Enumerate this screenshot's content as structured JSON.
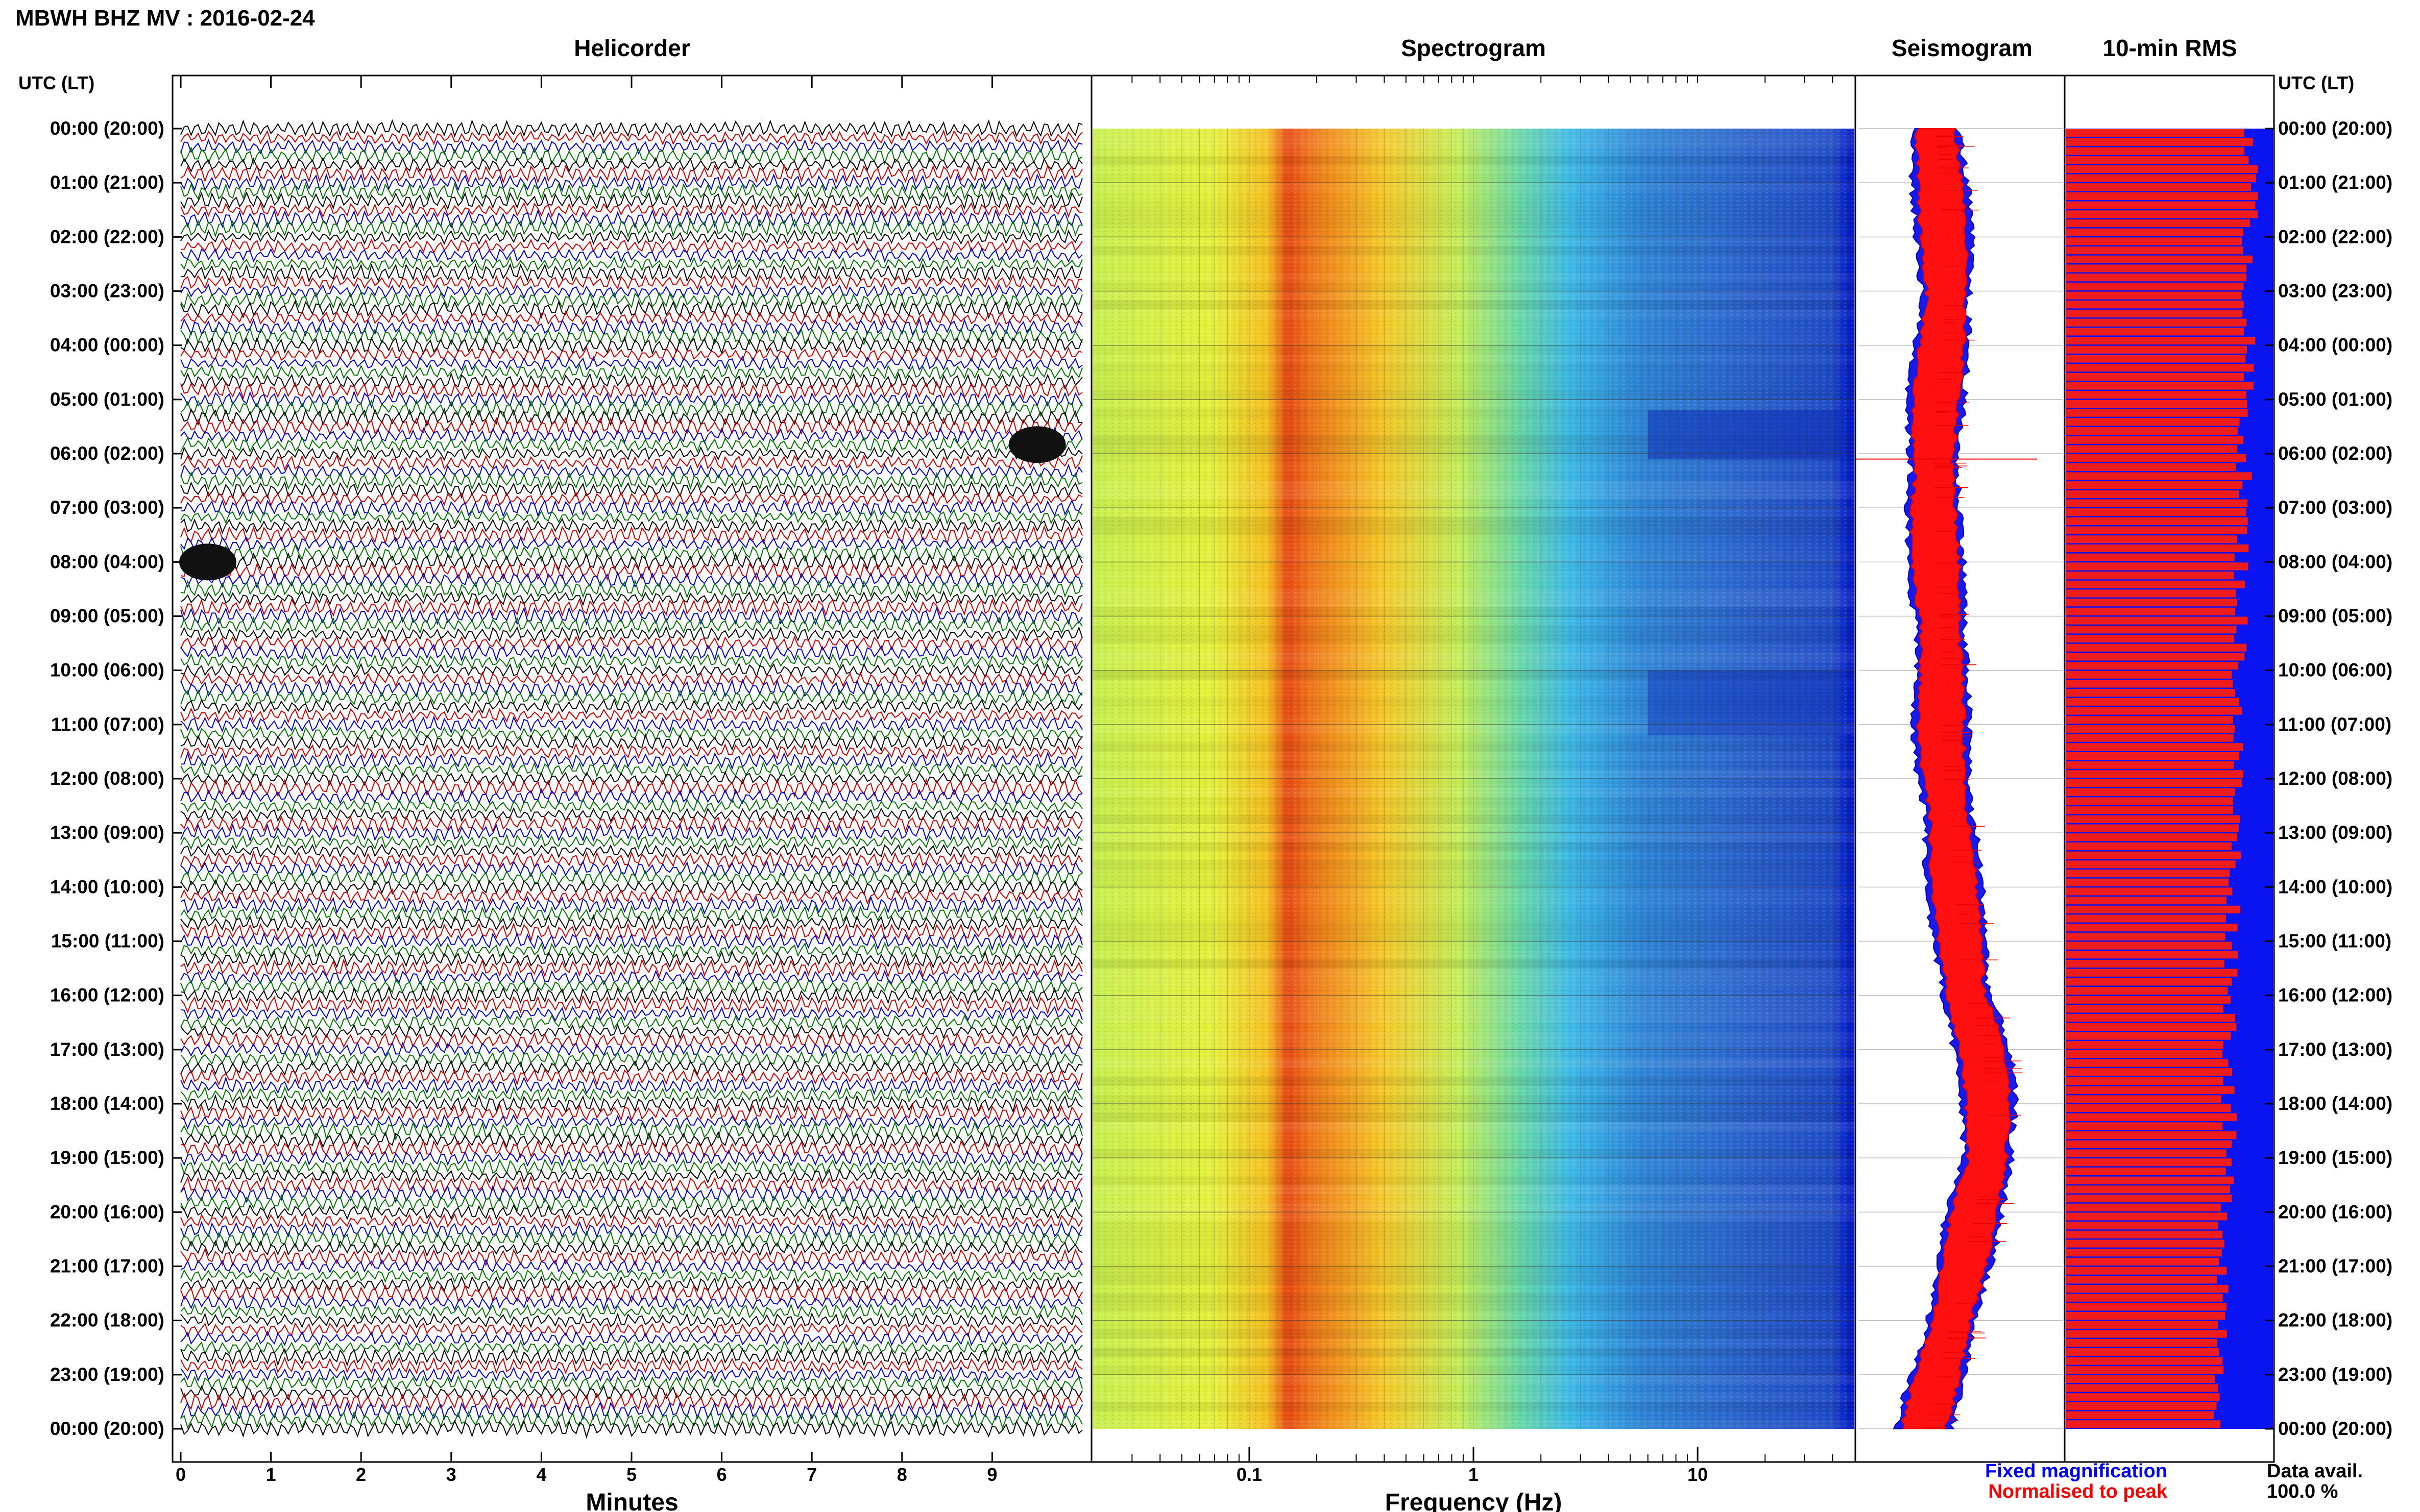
{
  "figure_title": "MBWH BHZ MV : 2016-02-24",
  "utc_lt_label": "UTC (LT)",
  "panels": {
    "helicorder": "Helicorder",
    "spectrogram": "Spectrogram",
    "seismogram": "Seismogram",
    "rms": "10-min RMS"
  },
  "legend": {
    "fixed": "Fixed magnification",
    "normalised": "Normalised to peak",
    "data_avail_label": "Data avail.",
    "data_avail_value": "100.0 %"
  },
  "colors": {
    "trace_cycle": [
      "#000000",
      "#cc0000",
      "#0000cc",
      "#007700"
    ],
    "fixed": "#0000ff",
    "normalised": "#ff0000",
    "rms_bar": "#ee1c1c",
    "rms_background": "#0a14f0"
  },
  "chart_data": [
    {
      "type": "line",
      "name": "helicorder",
      "xlabel": "Minutes",
      "xlim": [
        0,
        10
      ],
      "x_ticks": [
        "0",
        "1",
        "2",
        "3",
        "4",
        "5",
        "6",
        "7",
        "8",
        "9"
      ],
      "row_minutes": 10,
      "rows": 144,
      "y_labels": [
        "00:00 (20:00)",
        "01:00 (21:00)",
        "02:00 (22:00)",
        "03:00 (23:00)",
        "04:00 (00:00)",
        "05:00 (01:00)",
        "06:00 (02:00)",
        "07:00 (03:00)",
        "08:00 (04:00)",
        "09:00 (05:00)",
        "10:00 (06:00)",
        "11:00 (07:00)",
        "12:00 (08:00)",
        "13:00 (09:00)",
        "14:00 (10:00)",
        "15:00 (11:00)",
        "16:00 (12:00)",
        "17:00 (13:00)",
        "18:00 (14:00)",
        "19:00 (15:00)",
        "20:00 (16:00)",
        "21:00 (17:00)",
        "22:00 (18:00)",
        "23:00 (19:00)",
        "00:00 (20:00)"
      ],
      "events": [
        {
          "utc": "05:50",
          "minute": 9.5
        },
        {
          "utc": "07:60",
          "minute": 0.3
        }
      ]
    },
    {
      "type": "heatmap",
      "name": "spectrogram",
      "xlabel": "Frequency (Hz)",
      "x_scale": "log",
      "xlim": [
        0.02,
        50
      ],
      "x_ticks": [
        "0.1",
        "1",
        "10"
      ],
      "dominant_band_hz": [
        0.15,
        0.35
      ]
    },
    {
      "type": "area",
      "name": "seismogram",
      "envelope_hours": [
        0,
        1,
        2,
        3,
        4,
        5,
        6,
        7,
        8,
        9,
        10,
        11,
        12,
        13,
        14,
        15,
        16,
        17,
        18,
        19,
        20,
        21,
        22,
        23,
        24
      ],
      "envelope_amplitude": [
        0.32,
        0.36,
        0.4,
        0.42,
        0.38,
        0.32,
        0.3,
        0.3,
        0.32,
        0.36,
        0.38,
        0.37,
        0.4,
        0.47,
        0.5,
        0.56,
        0.62,
        0.78,
        0.84,
        0.83,
        0.7,
        0.6,
        0.48,
        0.34,
        0.2
      ]
    },
    {
      "type": "bar",
      "name": "10-min RMS",
      "rows": 144,
      "value_range": [
        0,
        1
      ],
      "typical_values": [
        0.9,
        0.75
      ]
    }
  ]
}
